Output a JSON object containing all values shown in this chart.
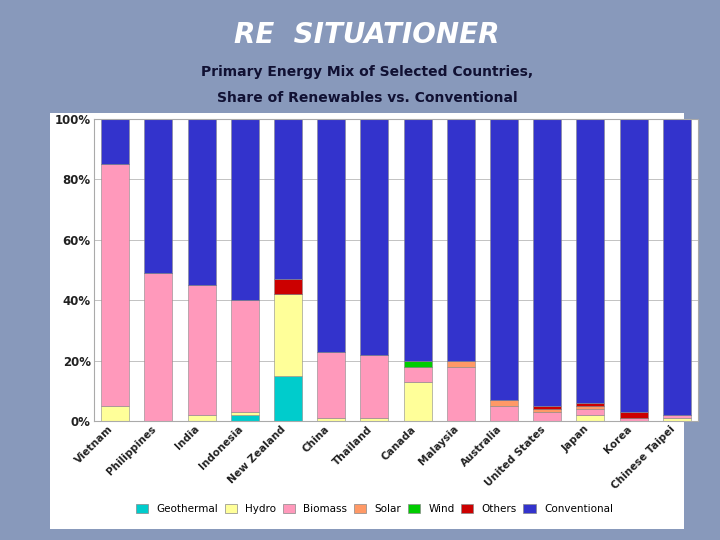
{
  "countries": [
    "Vietnam",
    "Philippines",
    "India",
    "Indonesia",
    "New Zealand",
    "China",
    "Thailand",
    "Canada",
    "Malaysia",
    "Australia",
    "United States",
    "Japan",
    "Korea",
    "Chinese Taipei"
  ],
  "geothermal": [
    0,
    0,
    0,
    2,
    15,
    0,
    0,
    0,
    0,
    0,
    0,
    0,
    0,
    0
  ],
  "hydro": [
    5,
    0,
    2,
    1,
    27,
    1,
    1,
    13,
    0,
    0,
    0,
    2,
    0,
    1
  ],
  "biomass": [
    80,
    49,
    43,
    37,
    0,
    22,
    21,
    5,
    18,
    5,
    3,
    2,
    1,
    1
  ],
  "solar": [
    0,
    0,
    0,
    0,
    0,
    0,
    0,
    0,
    2,
    2,
    1,
    1,
    0,
    0
  ],
  "wind": [
    0,
    0,
    0,
    0,
    0,
    0,
    0,
    2,
    0,
    0,
    0,
    0,
    0,
    0
  ],
  "others": [
    0,
    0,
    0,
    0,
    5,
    0,
    0,
    0,
    0,
    0,
    1,
    1,
    2,
    0
  ],
  "colors": {
    "geothermal": "#00CCCC",
    "hydro": "#FFFF99",
    "biomass": "#FF99BB",
    "solar": "#FF9966",
    "wind": "#00CC00",
    "others": "#CC0000",
    "conventional": "#3333CC"
  },
  "title": "RE  SITUATIONER",
  "subtitle_line1": "Primary Energy Mix of Selected Countries,",
  "subtitle_line2": "Share of Renewables vs. Conventional",
  "bg_top_color": "#8899BB",
  "bg_bottom_color": "#6688AA",
  "chart_bg": "#FFFFFF",
  "title_bg": "#FF9900",
  "title_color": "#FFFFFF",
  "subtitle_color": "#111133",
  "ytick_labels": [
    "0%",
    "20%",
    "40%",
    "60%",
    "80%",
    "100%"
  ],
  "yticks": [
    0,
    0.2,
    0.4,
    0.6,
    0.8,
    1.0
  ]
}
